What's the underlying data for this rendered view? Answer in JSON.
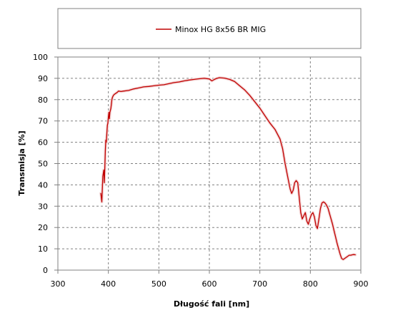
{
  "chart_data": {
    "type": "line",
    "title": "",
    "xlabel": "Długość fali [nm]",
    "ylabel": "Transmisja [%]",
    "xlim": [
      300,
      900
    ],
    "ylim": [
      0,
      100
    ],
    "x_ticks": [
      300,
      400,
      500,
      600,
      700,
      800,
      900
    ],
    "y_ticks": [
      0,
      10,
      20,
      30,
      40,
      50,
      60,
      70,
      80,
      90,
      100
    ],
    "x_tick_labels": [
      "300",
      "400",
      "500",
      "600",
      "700",
      "800",
      "900"
    ],
    "y_tick_labels": [
      "0",
      "10",
      "20",
      "30",
      "40",
      "50",
      "60",
      "70",
      "80",
      "90",
      "100"
    ],
    "grid": true,
    "legend_position": "top",
    "series": [
      {
        "name": "Minox HG 8x56 BR MIG",
        "color": "#c00000",
        "x": [
          385,
          387,
          389,
          391,
          392,
          393,
          394,
          395,
          396,
          397,
          398,
          399,
          400,
          401,
          402,
          403,
          404,
          405,
          406,
          407,
          408,
          410,
          412,
          415,
          418,
          420,
          425,
          430,
          440,
          450,
          460,
          470,
          480,
          490,
          500,
          510,
          520,
          530,
          540,
          550,
          560,
          570,
          580,
          590,
          600,
          605,
          610,
          615,
          620,
          630,
          640,
          650,
          660,
          670,
          680,
          690,
          700,
          710,
          720,
          730,
          740,
          745,
          750,
          755,
          760,
          763,
          766,
          769,
          772,
          775,
          778,
          781,
          784,
          787,
          790,
          793,
          796,
          799,
          802,
          805,
          808,
          811,
          814,
          817,
          820,
          823,
          826,
          829,
          832,
          835,
          838,
          841,
          844,
          847,
          850,
          853,
          856,
          859,
          862,
          865,
          868,
          871,
          874,
          877,
          880,
          883,
          886,
          889
        ],
        "y": [
          36,
          32,
          44,
          47,
          41,
          48,
          56,
          61,
          60,
          64,
          68,
          69,
          72,
          74,
          71,
          74,
          75,
          76,
          78,
          80,
          81,
          82,
          82.5,
          83,
          83.5,
          84,
          83.8,
          84,
          84.3,
          85,
          85.5,
          86,
          86.2,
          86.5,
          86.8,
          87,
          87.5,
          88,
          88.3,
          88.8,
          89.2,
          89.5,
          89.8,
          90,
          89.7,
          88.8,
          89.5,
          90,
          90.3,
          90.1,
          89.5,
          88.5,
          86.5,
          84.5,
          82,
          79,
          76,
          72.5,
          69,
          66,
          61.5,
          57,
          50,
          44,
          38,
          36,
          37.5,
          41,
          42,
          41,
          34,
          27,
          24,
          25.5,
          27,
          23,
          21.5,
          24,
          26,
          27,
          25,
          21,
          19.5,
          24,
          29,
          31.5,
          32,
          31.5,
          30.5,
          29,
          26.5,
          24,
          21.5,
          18.5,
          15.5,
          12.5,
          10,
          7.5,
          5.5,
          5,
          5.5,
          6,
          6.5,
          7,
          7,
          7.2,
          7.3,
          7.2
        ]
      }
    ]
  }
}
